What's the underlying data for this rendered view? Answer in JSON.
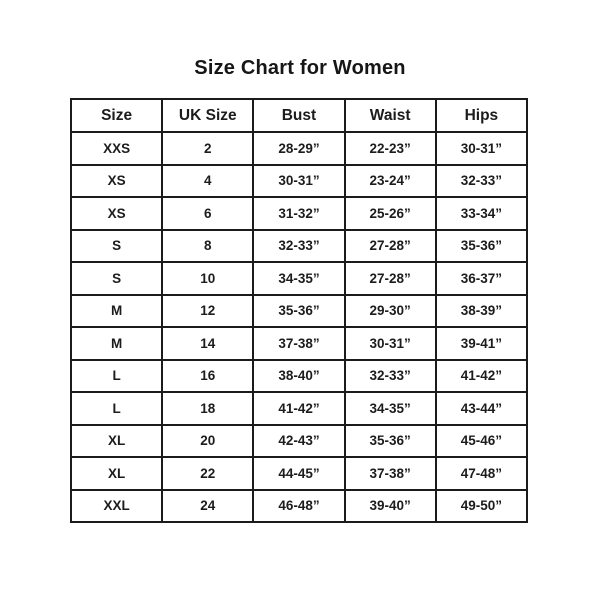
{
  "page": {
    "title": "Size Chart for Women"
  },
  "table": {
    "columns": [
      "Size",
      "UK Size",
      "Bust",
      "Waist",
      "Hips"
    ],
    "rows": [
      [
        "XXS",
        "2",
        "28-29”",
        "22-23”",
        "30-31”"
      ],
      [
        "XS",
        "4",
        "30-31”",
        "23-24”",
        "32-33”"
      ],
      [
        "XS",
        "6",
        "31-32”",
        "25-26”",
        "33-34”"
      ],
      [
        "S",
        "8",
        "32-33”",
        "27-28”",
        "35-36”"
      ],
      [
        "S",
        "10",
        "34-35”",
        "27-28”",
        "36-37”"
      ],
      [
        "M",
        "12",
        "35-36”",
        "29-30”",
        "38-39”"
      ],
      [
        "M",
        "14",
        "37-38”",
        "30-31”",
        "39-41”"
      ],
      [
        "L",
        "16",
        "38-40”",
        "32-33”",
        "41-42”"
      ],
      [
        "L",
        "18",
        "41-42”",
        "34-35”",
        "43-44”"
      ],
      [
        "XL",
        "20",
        "42-43”",
        "35-36”",
        "45-46”"
      ],
      [
        "XL",
        "22",
        "44-45”",
        "37-38”",
        "47-48”"
      ],
      [
        "XXL",
        "24",
        "46-48”",
        "39-40”",
        "49-50”"
      ]
    ]
  },
  "colors": {
    "background": "#ffffff",
    "text": "#1c1c1c",
    "border": "#1b1b1b"
  }
}
